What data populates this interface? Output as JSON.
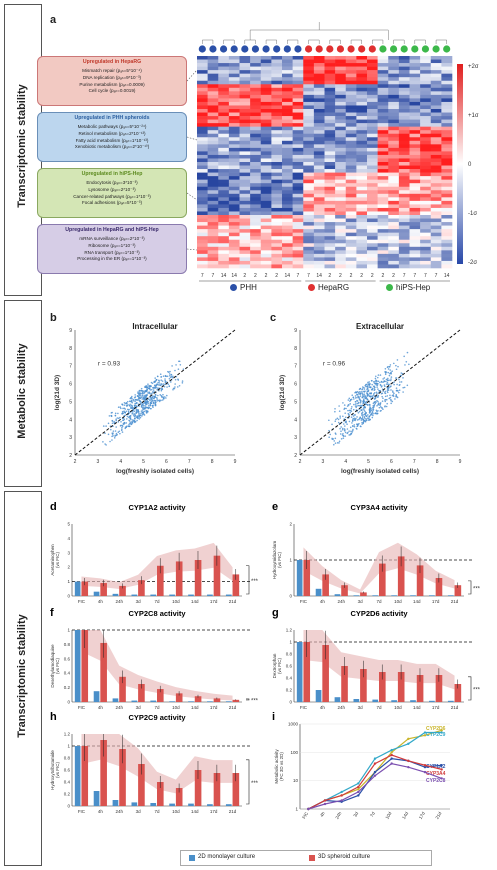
{
  "side_labels": {
    "top": "Transcriptomic stability",
    "middle": "Metabolic stability",
    "bottom": "Transcriptomic stability"
  },
  "panel_a": {
    "letter": "a",
    "boxes": [
      {
        "header": "Upregulated in HepaRG",
        "color": "#f2c9c2",
        "border": "#c77",
        "header_color": "#c0392b",
        "lines": [
          "Mismatch repair (pₐₙ=5*10⁻⁴)",
          "DNA replication (pₐₙ=9*10⁻³)",
          "Purine metabolism (pₐₙ=0.0009)",
          "Cell cycle (pₐₙ=0.0019)"
        ]
      },
      {
        "header": "Upregulated in PHH spheroids",
        "color": "#bcd6ee",
        "border": "#6a8fb8",
        "header_color": "#2a5d9e",
        "lines": [
          "Metabolic pathways (pₐₙ=5*10⁻²⁴)",
          "Retinol metabolism (pₐₙ=2*10⁻¹³)",
          "Fatty acid metabolism (pₐₙ=1*10⁻¹³)",
          "Xenobiotic metabolism (pₐₙ=2*10⁻¹⁰)"
        ]
      },
      {
        "header": "Upregulated in hiPS-Hep",
        "color": "#d4e6b5",
        "border": "#8aa860",
        "header_color": "#5b8a1e",
        "lines": [
          "Endocytosis (pₐₙ=3*10⁻³)",
          "Lysosome (pₐₙ=2*10⁻³)",
          "Cancer-related pathways (pₐₙ=1*10⁻³)",
          "Focal adhesions (pₐₙ=5*10⁻³)"
        ]
      },
      {
        "header": "Upregulated in HepaRG and hiPS-Hep",
        "color": "#d6cde6",
        "border": "#8a7aae",
        "header_color": "#3a2a6a",
        "lines": [
          "mRNA surveillance (pₐₙ=2*10⁻³)",
          "Ribosome (pₐₙ=1*10⁻³)",
          "RNA transport (pₐₙ=1*10⁻³)",
          "Processing in the ER (pₐₙ=1*10⁻³)"
        ]
      }
    ],
    "scale_labels": [
      "+2σ",
      "+1σ",
      "0",
      "-1σ",
      "-2σ"
    ],
    "column_days": [
      "7",
      "7",
      "14",
      "14",
      "2",
      "2",
      "2",
      "2",
      "14",
      "7",
      "7",
      "14",
      "2",
      "2",
      "2",
      "2",
      "2",
      "2",
      "2",
      "7",
      "7",
      "7",
      "7",
      "14"
    ],
    "column_groups": [
      "blue",
      "blue",
      "blue",
      "blue",
      "blue",
      "blue",
      "blue",
      "blue",
      "blue",
      "blue",
      "red",
      "red",
      "red",
      "red",
      "red",
      "red",
      "red",
      "green",
      "green",
      "green",
      "green",
      "green",
      "green",
      "green"
    ],
    "legend": [
      {
        "label": "PHH",
        "color": "#2b50a8"
      },
      {
        "label": "HepaRG",
        "color": "#e03030"
      },
      {
        "label": "hiPS-Hep",
        "color": "#3cb84a"
      }
    ]
  },
  "panel_b": {
    "letter": "b",
    "title": "Intracellular",
    "r_label": "r = 0.93",
    "xlabel": "log(freshly isolated cells)",
    "ylabel": "log(21d 3D)",
    "xticks": [
      "2",
      "3",
      "4",
      "5",
      "6",
      "7",
      "8",
      "9"
    ],
    "yticks": [
      "2",
      "3",
      "4",
      "5",
      "6",
      "7",
      "8",
      "9"
    ]
  },
  "panel_c": {
    "letter": "c",
    "title": "Extracellular",
    "r_label": "r = 0.96",
    "xlabel": "log(freshly isolated cells)",
    "ylabel": "log(21d 3D)",
    "xticks": [
      "2",
      "3",
      "4",
      "5",
      "6",
      "7",
      "8",
      "9"
    ],
    "yticks": [
      "2",
      "3",
      "4",
      "5",
      "6",
      "7",
      "8",
      "9"
    ]
  },
  "time_labels": [
    "FIC",
    "4h",
    "24h",
    "3d",
    "7d",
    "10d",
    "14d",
    "17d",
    "21d"
  ],
  "panels_cyp": [
    {
      "letter": "d",
      "title": "CYP1A2 activity",
      "ylabel": "Acetaminophen\n(vs FIC)",
      "yticks": [
        "0",
        "1",
        "2",
        "3",
        "4",
        "5"
      ],
      "ymax": 5,
      "spheroid": [
        1,
        0.9,
        0.7,
        1.1,
        2.1,
        2.4,
        2.5,
        2.8,
        1.5
      ],
      "monolayer": [
        1,
        0.3,
        0.15,
        0.1,
        0.1,
        0.1,
        0.1,
        0.1,
        0.1
      ],
      "sig": "***"
    },
    {
      "letter": "e",
      "title": "CYP3A4 activity",
      "ylabel": "Hydroxymidazolam\n(vs FIC)",
      "yticks": [
        "0",
        "1",
        "2"
      ],
      "ymax": 2,
      "spheroid": [
        1,
        0.6,
        0.3,
        0.1,
        0.9,
        1.1,
        0.85,
        0.5,
        0.3
      ],
      "monolayer": [
        1,
        0.2,
        0.05,
        0.02,
        0.02,
        0.02,
        0.02,
        0.02,
        0.02
      ],
      "sig": "***"
    },
    {
      "letter": "f",
      "title": "CYP2C8 activity",
      "ylabel": "Desethylamodiaquine\n(vs FIC)",
      "yticks": [
        "0",
        "0.2",
        "0.4",
        "0.6",
        "0.8",
        "1"
      ],
      "ymax": 1,
      "spheroid": [
        1,
        0.82,
        0.35,
        0.25,
        0.18,
        0.12,
        0.08,
        0.05,
        0.03
      ],
      "monolayer": [
        1,
        0.15,
        0.05,
        0.02,
        0.02,
        0.01,
        0.01,
        0.01,
        0.01
      ],
      "sig": "***"
    },
    {
      "letter": "g",
      "title": "CYP2D6 activity",
      "ylabel": "Dextrorphan\n(vs FIC)",
      "yticks": [
        "0",
        "0.2",
        "0.4",
        "0.6",
        "0.8",
        "1",
        "1.2"
      ],
      "ymax": 1.2,
      "spheroid": [
        1,
        0.95,
        0.6,
        0.55,
        0.5,
        0.5,
        0.45,
        0.45,
        0.3
      ],
      "monolayer": [
        1,
        0.2,
        0.08,
        0.05,
        0.04,
        0.03,
        0.03,
        0.02,
        0.02
      ],
      "sig": "***"
    },
    {
      "letter": "h",
      "title": "CYP2C9 activity",
      "ylabel": "Hydroxytolbutamide\n(vs FIC)",
      "yticks": [
        "0",
        "0.2",
        "0.4",
        "0.6",
        "0.8",
        "1",
        "1.2"
      ],
      "ymax": 1.2,
      "spheroid": [
        1,
        1.1,
        0.95,
        0.7,
        0.4,
        0.3,
        0.6,
        0.55,
        0.55
      ],
      "monolayer": [
        1,
        0.25,
        0.1,
        0.06,
        0.05,
        0.04,
        0.04,
        0.03,
        0.03
      ],
      "sig": "***"
    }
  ],
  "panel_i": {
    "letter": "i",
    "ylabel": "Metabolic activity\n(FC 3D vs 2D)",
    "yticks": [
      "1",
      "10",
      "100",
      "1000"
    ],
    "series": [
      {
        "name": "CYP2D6",
        "color": "#c9b52a",
        "values": [
          1,
          2,
          3,
          5,
          20,
          100,
          300,
          400,
          600
        ]
      },
      {
        "name": "CYP2C9",
        "color": "#33a9c9",
        "values": [
          1,
          2,
          4,
          8,
          60,
          120,
          200,
          500,
          500
        ]
      },
      {
        "name": "CYP1A2",
        "color": "#2b50a8",
        "values": [
          1,
          2,
          1.8,
          3,
          20,
          60,
          50,
          30,
          35
        ]
      },
      {
        "name": "CYP3A4",
        "color": "#d13b3b",
        "values": [
          1,
          2,
          3,
          6,
          40,
          80,
          50,
          35,
          25
        ]
      },
      {
        "name": "CYP2C8",
        "color": "#7b4fb0",
        "values": [
          1,
          1.5,
          2,
          4,
          15,
          40,
          30,
          20,
          12
        ]
      }
    ]
  },
  "bottom_legend": [
    {
      "label": "2D monolayer culture",
      "color": "#4a8fc9"
    },
    {
      "label": "3D spheroid culture",
      "color": "#d9534f"
    }
  ]
}
